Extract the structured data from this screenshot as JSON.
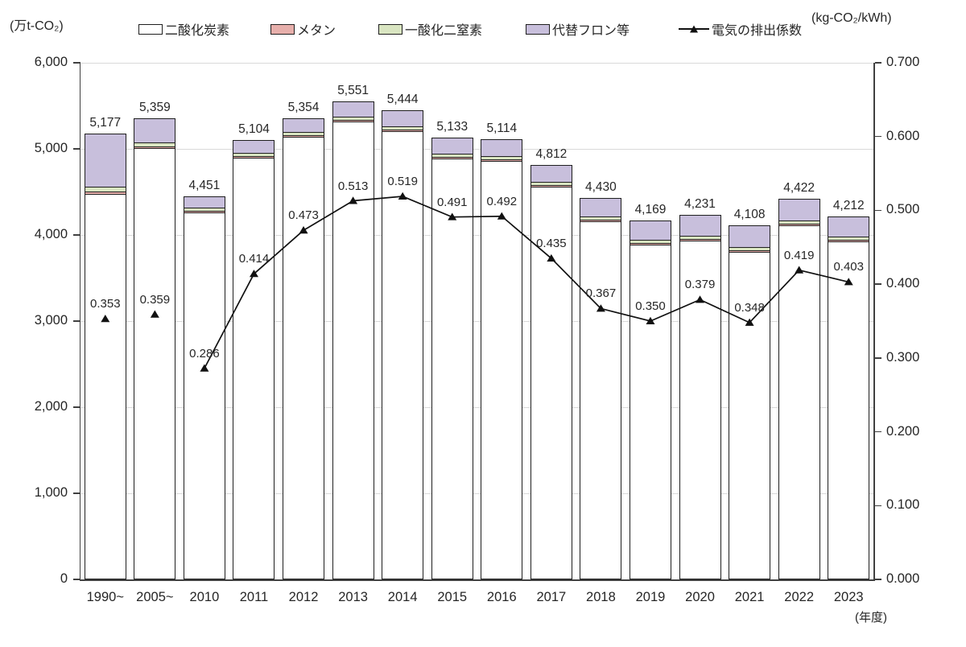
{
  "units": {
    "left_axis_unit": "(万t-CO₂)",
    "right_axis_unit": "(kg-CO₂/kWh)",
    "x_axis_unit": "(年度)"
  },
  "chart_data": {
    "type": "bar",
    "subtype": "stacked-bars-with-line-overlay",
    "title": "",
    "categories": [
      "1990~",
      "2005~",
      "2010",
      "2011",
      "2012",
      "2013",
      "2014",
      "2015",
      "2016",
      "2017",
      "2018",
      "2019",
      "2020",
      "2021",
      "2022",
      "2023"
    ],
    "series": [
      {
        "key": "co2",
        "name": "二酸化炭素",
        "color": "#FFFFFF",
        "values": [
          4477,
          5009,
          4261,
          4899,
          5139,
          5321,
          5199,
          4893,
          4864,
          4557,
          4160,
          3894,
          3936,
          3803,
          4117,
          3922
        ]
      },
      {
        "key": "ch4",
        "name": "メタン",
        "color": "#E7AFAB",
        "values": [
          25,
          20,
          20,
          20,
          20,
          20,
          20,
          20,
          20,
          20,
          20,
          20,
          20,
          20,
          20,
          20
        ]
      },
      {
        "key": "n2o",
        "name": "一酸化二窒素",
        "color": "#D9E5C1",
        "values": [
          55,
          45,
          35,
          35,
          35,
          35,
          35,
          35,
          35,
          35,
          35,
          35,
          35,
          35,
          35,
          35
        ]
      },
      {
        "key": "hfc",
        "name": "代替フロン等",
        "color": "#C8BFDC",
        "values": [
          620,
          285,
          135,
          150,
          160,
          175,
          190,
          185,
          195,
          200,
          215,
          220,
          240,
          250,
          250,
          235
        ]
      }
    ],
    "totals": [
      5177,
      5359,
      4451,
      5104,
      5354,
      5551,
      5444,
      5133,
      5114,
      4812,
      4430,
      4169,
      4231,
      4108,
      4422,
      4212
    ],
    "total_labels": [
      "5,177",
      "5,359",
      "4,451",
      "5,104",
      "5,354",
      "5,551",
      "5,444",
      "5,133",
      "5,114",
      "4,812",
      "4,430",
      "4,169",
      "4,231",
      "4,108",
      "4,422",
      "4,212"
    ],
    "line": {
      "name": "電気の排出係数",
      "color": "#111111",
      "values": [
        0.353,
        0.359,
        0.286,
        0.414,
        0.473,
        0.513,
        0.519,
        0.491,
        0.492,
        0.435,
        0.367,
        0.35,
        0.379,
        0.348,
        0.419,
        0.403
      ],
      "labels": [
        "0.353",
        "0.359",
        "0.286",
        "0.414",
        "0.473",
        "0.513",
        "0.519",
        "0.491",
        "0.492",
        "0.435",
        "0.367",
        "0.350",
        "0.379",
        "0.348",
        "0.419",
        "0.403"
      ],
      "line_starts_at_index": 2
    },
    "left_axis": {
      "max": 6000,
      "step": 1000,
      "tick_labels": [
        "0",
        "1,000",
        "2,000",
        "3,000",
        "4,000",
        "5,000",
        "6,000"
      ]
    },
    "right_axis": {
      "max": 0.7,
      "step": 0.1,
      "tick_labels": [
        "0.000",
        "0.100",
        "0.200",
        "0.300",
        "0.400",
        "0.500",
        "0.600",
        "0.700"
      ]
    },
    "grid": true,
    "legend_position": "top"
  }
}
